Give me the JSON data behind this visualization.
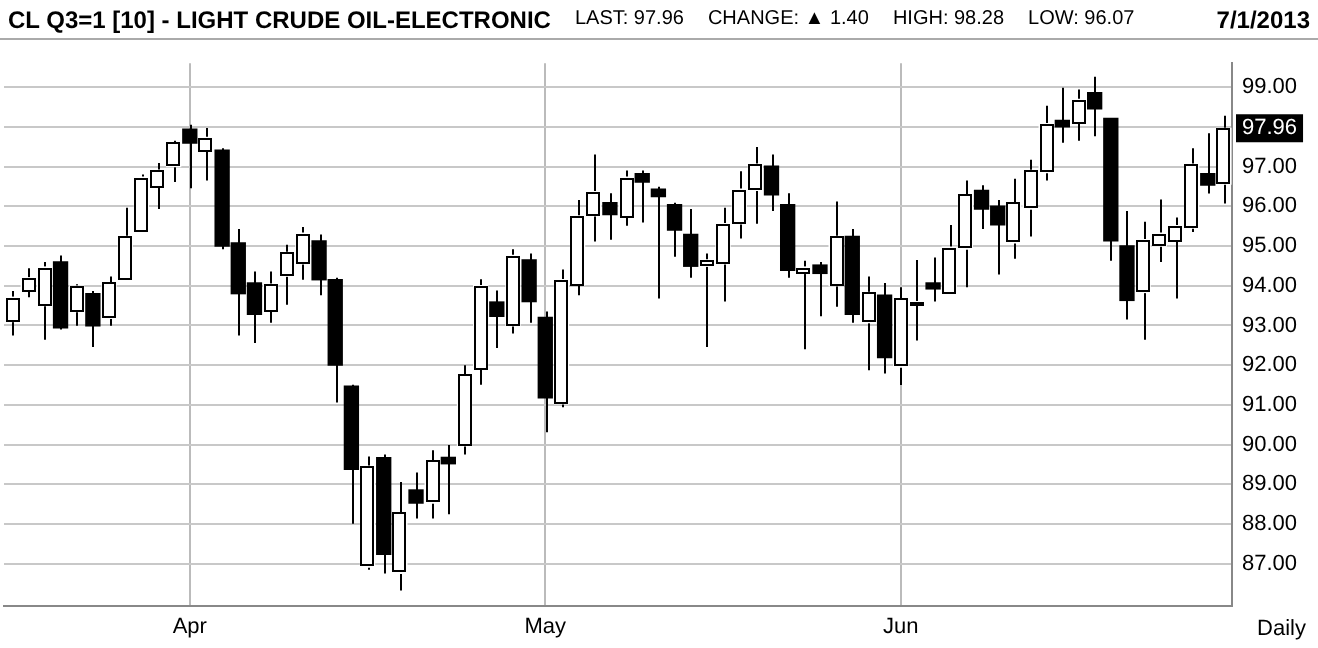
{
  "chart_data": {
    "type": "candlestick",
    "title": "CL Q3=1 [10] - LIGHT CRUDE OIL-ELECTRONIC",
    "subtitle": "7/1/2013",
    "xlabel": "Daily",
    "annotations": [
      "LAST: 97.96",
      "CHANGE: ▲ 1.40",
      "HIGH: 98.28",
      "LOW: 96.07",
      {
        "text": "97.96",
        "y": 97.96
      }
    ],
    "categories": [
      null,
      null,
      null,
      null,
      null,
      null,
      null,
      null,
      null,
      null,
      null,
      "Apr",
      null,
      null,
      null,
      null,
      null,
      null,
      null,
      null,
      null,
      null,
      null,
      null,
      null,
      null,
      null,
      null,
      null,
      null,
      null,
      null,
      null,
      "May",
      null,
      null,
      null,
      null,
      null,
      null,
      null,
      null,
      null,
      null,
      null,
      null,
      null,
      null,
      null,
      null,
      null,
      null,
      null,
      null,
      null,
      "Jun",
      null,
      null,
      null,
      null,
      null,
      null,
      null,
      null,
      null,
      null,
      null,
      null,
      null,
      null,
      null,
      null,
      null,
      null,
      null,
      null
    ],
    "ohlc": [
      [
        93.1,
        93.87,
        92.75,
        93.71
      ],
      [
        93.87,
        94.44,
        93.71,
        94.2
      ],
      [
        93.5,
        94.6,
        92.64,
        94.47
      ],
      [
        94.6,
        94.76,
        92.9,
        92.94
      ],
      [
        93.35,
        94.04,
        92.99,
        93.99
      ],
      [
        93.8,
        93.87,
        92.46,
        92.99
      ],
      [
        93.18,
        94.23,
        92.99,
        94.07
      ],
      [
        94.15,
        95.96,
        94.15,
        95.24
      ],
      [
        95.37,
        96.8,
        95.37,
        96.73
      ],
      [
        96.48,
        97.09,
        95.93,
        96.91
      ],
      [
        97.0,
        97.65,
        96.61,
        97.6
      ],
      [
        97.94,
        98.05,
        96.45,
        97.59
      ],
      [
        97.38,
        97.97,
        96.65,
        97.73
      ],
      [
        97.41,
        97.46,
        94.92,
        95.0
      ],
      [
        95.08,
        95.43,
        92.75,
        93.8
      ],
      [
        94.07,
        94.36,
        92.56,
        93.28
      ],
      [
        93.36,
        94.36,
        93.07,
        94.04
      ],
      [
        94.24,
        95.03,
        93.52,
        94.84
      ],
      [
        94.55,
        95.48,
        94.15,
        95.32
      ],
      [
        95.13,
        95.29,
        93.76,
        94.15
      ],
      [
        94.15,
        94.2,
        91.06,
        92.0
      ],
      [
        91.47,
        91.51,
        88.01,
        89.38
      ],
      [
        86.92,
        89.7,
        86.85,
        89.46
      ],
      [
        89.67,
        89.75,
        86.76,
        87.24
      ],
      [
        86.76,
        89.06,
        86.33,
        88.29
      ],
      [
        88.86,
        89.3,
        88.14,
        88.53
      ],
      [
        88.53,
        89.86,
        88.14,
        89.59
      ],
      [
        89.68,
        89.99,
        88.25,
        89.52
      ],
      [
        89.97,
        92.0,
        89.75,
        91.76
      ],
      [
        91.9,
        94.16,
        91.51,
        94.0
      ],
      [
        93.59,
        93.88,
        92.43,
        93.23
      ],
      [
        92.99,
        94.92,
        92.8,
        94.76
      ],
      [
        94.65,
        94.81,
        93.07,
        93.6
      ],
      [
        93.2,
        93.35,
        90.31,
        91.18
      ],
      [
        91.03,
        94.41,
        90.94,
        94.15
      ],
      [
        94.02,
        96.16,
        93.76,
        95.76
      ],
      [
        95.76,
        97.3,
        95.11,
        96.37
      ],
      [
        96.09,
        96.33,
        95.16,
        95.79
      ],
      [
        95.72,
        96.9,
        95.51,
        96.73
      ],
      [
        96.82,
        96.9,
        95.59,
        96.61
      ],
      [
        96.43,
        96.49,
        93.68,
        96.24
      ],
      [
        96.04,
        96.09,
        94.73,
        95.4
      ],
      [
        95.29,
        95.93,
        94.2,
        94.49
      ],
      [
        94.49,
        94.81,
        92.46,
        94.65
      ],
      [
        94.55,
        95.96,
        93.6,
        95.56
      ],
      [
        95.56,
        96.88,
        95.19,
        96.43
      ],
      [
        96.4,
        97.49,
        95.56,
        97.06
      ],
      [
        97.01,
        97.3,
        95.88,
        96.29
      ],
      [
        96.04,
        96.33,
        94.2,
        94.39
      ],
      [
        94.31,
        94.63,
        92.4,
        94.47
      ],
      [
        94.52,
        94.6,
        93.23,
        94.31
      ],
      [
        94.0,
        96.12,
        93.47,
        95.24
      ],
      [
        95.24,
        95.43,
        93.07,
        93.28
      ],
      [
        93.07,
        94.23,
        91.87,
        93.83
      ],
      [
        93.76,
        94.07,
        91.79,
        92.19
      ],
      [
        91.95,
        93.96,
        91.5,
        93.67
      ],
      [
        93.51,
        94.65,
        92.62,
        93.6
      ],
      [
        94.07,
        94.71,
        93.6,
        93.92
      ],
      [
        93.83,
        95.53,
        93.83,
        94.97
      ],
      [
        94.92,
        96.65,
        93.96,
        96.29
      ],
      [
        96.4,
        96.53,
        95.43,
        95.93
      ],
      [
        96.0,
        96.16,
        94.28,
        95.53
      ],
      [
        95.08,
        96.69,
        94.68,
        96.09
      ],
      [
        95.93,
        97.17,
        95.24,
        96.9
      ],
      [
        96.85,
        98.53,
        96.65,
        98.08
      ],
      [
        98.16,
        98.98,
        97.6,
        98.0
      ],
      [
        98.1,
        98.94,
        97.65,
        98.69
      ],
      [
        98.86,
        99.26,
        97.76,
        98.45
      ],
      [
        98.21,
        98.21,
        94.63,
        95.13
      ],
      [
        95.0,
        95.88,
        93.15,
        93.63
      ],
      [
        93.83,
        95.61,
        92.64,
        95.16
      ],
      [
        95.0,
        96.17,
        94.6,
        95.32
      ],
      [
        95.13,
        95.72,
        93.68,
        95.51
      ],
      [
        95.45,
        97.46,
        95.35,
        97.06
      ],
      [
        96.82,
        97.84,
        96.32,
        96.53
      ],
      [
        96.56,
        98.28,
        96.07,
        97.96
      ]
    ],
    "ylim": [
      85.95,
      99.6
    ],
    "yticks": [
      {
        "value": 87,
        "label": "87.00"
      },
      {
        "value": 88,
        "label": "88.00"
      },
      {
        "value": 89,
        "label": "89.00"
      },
      {
        "value": 90,
        "label": "90.00"
      },
      {
        "value": 91,
        "label": "91.00"
      },
      {
        "value": 92,
        "label": "92.00"
      },
      {
        "value": 93,
        "label": "93.00"
      },
      {
        "value": 94,
        "label": "94.00"
      },
      {
        "value": 95,
        "label": "95.00"
      },
      {
        "value": 96,
        "label": "96.00"
      },
      {
        "value": 97,
        "label": "97.00"
      },
      {
        "value": 98,
        "label": null
      },
      {
        "value": 99,
        "label": "99.00"
      }
    ],
    "grid": true
  }
}
